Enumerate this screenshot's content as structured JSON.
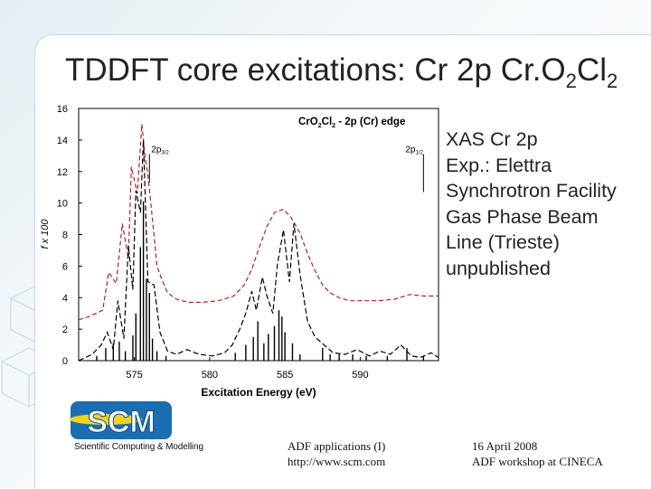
{
  "slide": {
    "title_main": "TDDFT core excitations: Cr 2p Cr.O",
    "title_sub1": "2",
    "title_mid": "Cl",
    "title_sub2": "2",
    "side_text": [
      "XAS Cr 2p",
      "Exp.: Elettra",
      "Synchrotron Facility",
      "Gas Phase Beam",
      "Line (Trieste)",
      "unpublished"
    ],
    "logo_caption": "Scientific Computing & Modelling",
    "logo_letters": "SCM",
    "footer_left": [
      "ADF applications (I)",
      "http://www.scm.com"
    ],
    "footer_right": [
      "16 April 2008",
      "ADF workshop at CINECA"
    ]
  },
  "colors": {
    "experiment": "#b22222",
    "theory": "#000000",
    "logo_blue": "#1b6fb0",
    "logo_yellow": "#f3d21c"
  },
  "chart_data": {
    "type": "line",
    "title_parts": [
      "Cr",
      "O",
      "2",
      "Cl",
      "2",
      " -  2p (Cr) edge"
    ],
    "xlabel": "Excitation Energy (eV)",
    "ylabel": "f x 100",
    "xlim": [
      571.3,
      595.2
    ],
    "ylim": [
      0,
      16
    ],
    "xticks": [
      575,
      580,
      585,
      590
    ],
    "yticks": [
      0,
      2,
      4,
      6,
      8,
      10,
      12,
      14,
      16
    ],
    "annotations": [
      {
        "label": "2p",
        "sub": "3/2",
        "x": 576,
        "y_top": 13.1,
        "y_bottom": 11.3
      },
      {
        "label": "2p",
        "sub": "1/2",
        "x": 594.2,
        "y_top": 13.1,
        "y_bottom": 10.7
      }
    ],
    "series": [
      {
        "style": "red-dashed",
        "x": [
          571.3,
          572,
          572.9,
          573.3,
          573.8,
          574.2,
          574.6,
          574.8,
          575.2,
          575.5,
          575.7,
          575.9,
          576.3,
          576.5,
          576.8,
          577.2,
          577.8,
          578.6,
          579.5,
          580.6,
          581.6,
          582.3,
          582.8,
          583.3,
          583.8,
          584.3,
          584.9,
          585.4,
          586.0,
          586.5,
          587.0,
          587.5,
          588.0,
          588.6,
          589.3,
          590.2,
          591.2,
          592.3,
          593.3,
          594.2,
          595.2
        ],
        "y": [
          2.6,
          2.8,
          3.2,
          5.6,
          4.9,
          8.7,
          6.5,
          12.3,
          10.6,
          15.0,
          13.0,
          11.8,
          8.0,
          6.0,
          5.2,
          4.3,
          3.9,
          3.7,
          3.7,
          3.8,
          4.1,
          4.8,
          5.8,
          7.2,
          8.5,
          9.4,
          9.6,
          9.1,
          8.1,
          6.8,
          5.7,
          4.8,
          4.3,
          4.0,
          3.8,
          3.8,
          3.8,
          3.9,
          4.2,
          4.1,
          4.1
        ]
      },
      {
        "style": "black-dashed",
        "x": [
          571.3,
          572.2,
          572.8,
          573.2,
          573.6,
          573.9,
          574.3,
          574.6,
          574.9,
          575.1,
          575.4,
          575.6,
          575.9,
          576.3,
          576.7,
          577.2,
          577.8,
          578.5,
          579.3,
          580.2,
          581.0,
          581.5,
          582.0,
          582.4,
          582.8,
          583.1,
          583.5,
          583.8,
          584.2,
          584.5,
          584.9,
          585.3,
          585.6,
          586.0,
          586.5,
          587.0,
          587.6,
          588.2,
          589.0,
          589.8,
          590.6,
          591.3,
          592.0,
          592.7,
          593.4,
          594.0,
          594.7,
          595.2
        ],
        "y": [
          0,
          0.4,
          1.0,
          1.8,
          0.7,
          3.8,
          1.4,
          7.3,
          4.5,
          10.8,
          9.4,
          14.0,
          5.0,
          4.8,
          1.8,
          0.6,
          0.4,
          0.7,
          0.4,
          0.3,
          0.5,
          1.0,
          2.0,
          3.0,
          4.4,
          3.2,
          5.3,
          4.1,
          3.0,
          6.1,
          8.3,
          5.0,
          8.7,
          5.5,
          2.5,
          1.5,
          1.0,
          0.5,
          0.4,
          0.7,
          0.3,
          0.6,
          0.4,
          1.0,
          0.3,
          0.2,
          0.5,
          0.2
        ]
      }
    ],
    "sticks": [
      [
        572.5,
        0.3
      ],
      [
        573.1,
        0.8
      ],
      [
        573.6,
        1.1
      ],
      [
        574.0,
        1.2
      ],
      [
        574.4,
        0.6
      ],
      [
        574.9,
        1.6
      ],
      [
        575.1,
        3.0
      ],
      [
        575.4,
        7.2
      ],
      [
        575.6,
        10.1
      ],
      [
        575.8,
        5.2
      ],
      [
        576.0,
        4.3
      ],
      [
        576.2,
        1.4
      ],
      [
        576.5,
        0.6
      ],
      [
        577.1,
        0.3
      ],
      [
        581.7,
        0.5
      ],
      [
        582.4,
        1.0
      ],
      [
        582.9,
        1.5
      ],
      [
        583.2,
        2.5
      ],
      [
        583.6,
        1.1
      ],
      [
        583.9,
        1.7
      ],
      [
        584.3,
        2.2
      ],
      [
        584.6,
        3.2
      ],
      [
        584.8,
        2.8
      ],
      [
        585.0,
        1.8
      ],
      [
        585.5,
        1.1
      ],
      [
        586.0,
        0.4
      ],
      [
        587.5,
        0.8
      ],
      [
        588.0,
        0.4
      ],
      [
        588.6,
        0.4
      ],
      [
        589.5,
        0.4
      ],
      [
        590.4,
        0.3
      ],
      [
        591.8,
        0.3
      ],
      [
        593.1,
        0.8
      ],
      [
        594.2,
        0.3
      ]
    ]
  }
}
